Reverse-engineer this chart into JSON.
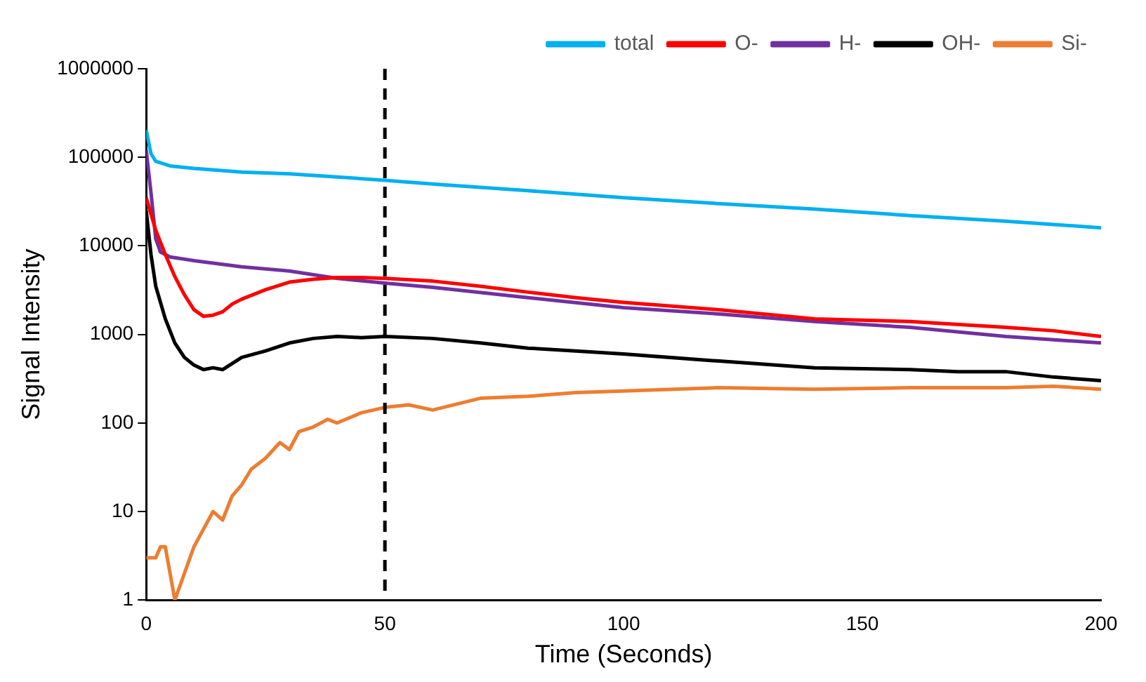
{
  "chart_data": {
    "type": "line",
    "xlabel": "Time (Seconds)",
    "ylabel": "Signal Intensity",
    "log": "y",
    "xlim": [
      0,
      200
    ],
    "xticks": [
      0,
      50,
      100,
      150,
      200
    ],
    "ylim": [
      1,
      1000000
    ],
    "yticks": [
      1,
      10,
      100,
      1000,
      10000,
      100000,
      1000000
    ],
    "grid": false,
    "legend": "top right",
    "marker": "none",
    "line_style": "solid",
    "ref_lines": [
      {
        "axis": "x",
        "value": 50,
        "color": "#000000",
        "line_style": "dashed"
      }
    ],
    "series": [
      {
        "name": "total",
        "color": "#00b0f0",
        "x": [
          0,
          1,
          2,
          5,
          10,
          20,
          30,
          40,
          50,
          60,
          80,
          100,
          120,
          140,
          160,
          180,
          200
        ],
        "values": [
          204000,
          110000,
          90000,
          80000,
          75000,
          68000,
          65000,
          60000,
          55000,
          50000,
          42000,
          35000,
          30000,
          26000,
          22000,
          19000,
          16000
        ]
      },
      {
        "name": "O-",
        "color": "#ff0000",
        "x": [
          0,
          2,
          4,
          6,
          8,
          10,
          12,
          14,
          16,
          18,
          20,
          25,
          30,
          35,
          40,
          45,
          50,
          60,
          70,
          80,
          90,
          100,
          120,
          140,
          160,
          180,
          190,
          200
        ],
        "values": [
          35000,
          15000,
          8000,
          4500,
          2800,
          1900,
          1600,
          1650,
          1800,
          2200,
          2500,
          3200,
          3900,
          4200,
          4400,
          4400,
          4300,
          4000,
          3500,
          3000,
          2600,
          2300,
          1900,
          1500,
          1400,
          1200,
          1100,
          950
        ]
      },
      {
        "name": "H-",
        "color": "#7030a0",
        "x": [
          0,
          1,
          2,
          3,
          5,
          10,
          20,
          30,
          40,
          50,
          60,
          80,
          100,
          120,
          140,
          160,
          180,
          200
        ],
        "values": [
          120000,
          40000,
          12000,
          8500,
          7500,
          6800,
          5800,
          5200,
          4300,
          3800,
          3400,
          2600,
          2000,
          1700,
          1400,
          1200,
          950,
          800
        ]
      },
      {
        "name": "OH-",
        "color": "#000000",
        "x": [
          0,
          1,
          2,
          4,
          6,
          8,
          10,
          12,
          14,
          16,
          20,
          25,
          30,
          35,
          40,
          45,
          50,
          60,
          70,
          80,
          90,
          100,
          120,
          140,
          160,
          170,
          180,
          190,
          200
        ],
        "values": [
          25000,
          8000,
          3500,
          1500,
          800,
          550,
          450,
          400,
          420,
          400,
          550,
          650,
          800,
          900,
          950,
          920,
          950,
          900,
          800,
          700,
          650,
          600,
          500,
          420,
          400,
          380,
          380,
          330,
          300
        ]
      },
      {
        "name": "Si-",
        "color": "#ed7d31",
        "x": [
          0,
          2,
          3,
          4,
          6,
          10,
          14,
          16,
          18,
          20,
          22,
          25,
          28,
          30,
          32,
          35,
          38,
          40,
          45,
          50,
          55,
          60,
          70,
          80,
          90,
          100,
          120,
          140,
          160,
          180,
          190,
          200
        ],
        "values": [
          3,
          3,
          4,
          4,
          1,
          4,
          10,
          8,
          15,
          20,
          30,
          40,
          60,
          50,
          80,
          90,
          110,
          100,
          130,
          150,
          160,
          140,
          190,
          200,
          220,
          230,
          250,
          240,
          250,
          250,
          260,
          240
        ]
      }
    ]
  }
}
